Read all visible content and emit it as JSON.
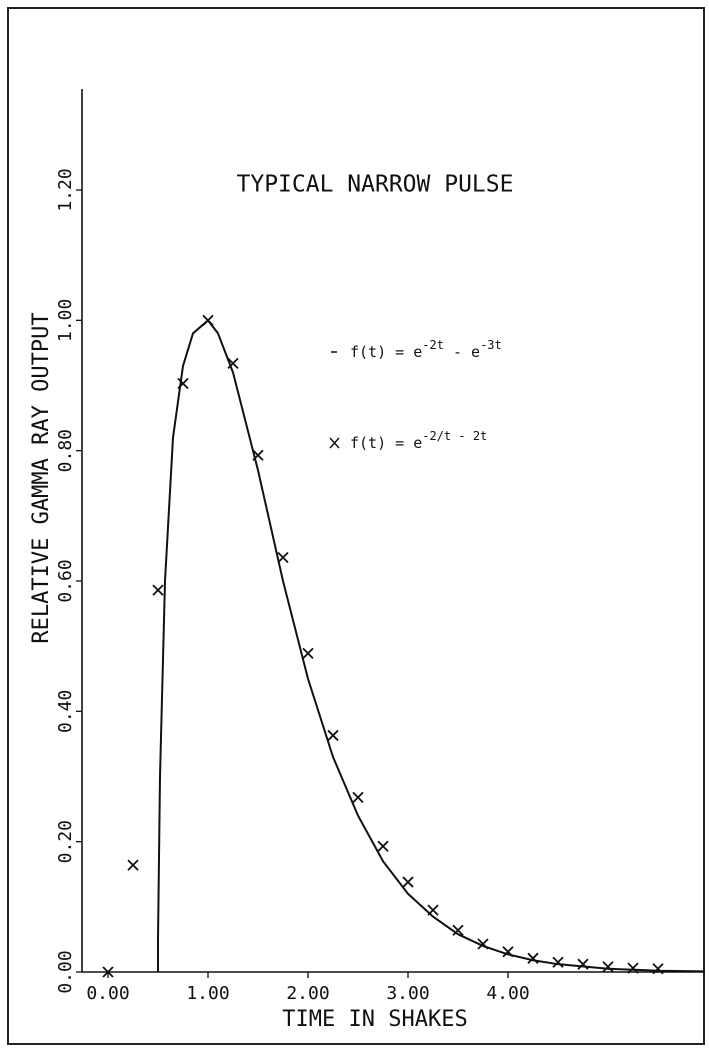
{
  "chart_data": {
    "type": "line",
    "title": "TYPICAL NARROW PULSE",
    "xlabel": "TIME IN SHAKES",
    "ylabel": "RELATIVE GAMMA RAY OUTPUT",
    "xlim": [
      -0.26,
      5.97
    ],
    "ylim": [
      0,
      1.355
    ],
    "xticks": [
      {
        "value": 0,
        "label": "0.00"
      },
      {
        "value": 1,
        "label": "1.00"
      },
      {
        "value": 2,
        "label": "2.00"
      },
      {
        "value": 3,
        "label": "3.00"
      },
      {
        "value": 4,
        "label": "4.00"
      }
    ],
    "yticks": [
      {
        "value": 0,
        "label": "0.00"
      },
      {
        "value": 0.2,
        "label": "0.20"
      },
      {
        "value": 0.4,
        "label": "0.40"
      },
      {
        "value": 0.6,
        "label": "0.60"
      },
      {
        "value": 0.8,
        "label": "0.80"
      },
      {
        "value": 1.0,
        "label": "1.00"
      },
      {
        "value": 1.2,
        "label": "1.20"
      }
    ],
    "series": [
      {
        "name": [
          "f(t) = e",
          "-2t",
          " - e",
          "-3t"
        ],
        "symbol": "line",
        "color": "#111111",
        "x": [
          0.5,
          0.5,
          0.52,
          0.57,
          0.65,
          0.75,
          0.85,
          1.0,
          1.1,
          1.25,
          1.5,
          1.75,
          2.0,
          2.25,
          2.5,
          2.75,
          3.0,
          3.25,
          3.5,
          3.75,
          4.0,
          4.25,
          4.5,
          5.0,
          5.5,
          5.97
        ],
        "values": [
          0,
          0.05,
          0.3,
          0.6,
          0.82,
          0.93,
          0.98,
          1.0,
          0.98,
          0.92,
          0.77,
          0.6,
          0.45,
          0.33,
          0.24,
          0.17,
          0.12,
          0.085,
          0.058,
          0.04,
          0.027,
          0.018,
          0.012,
          0.005,
          0.002,
          0.001
        ]
      },
      {
        "name": [
          "f(t) = e",
          "-2/t - 2t"
        ],
        "symbol": "x",
        "color": "#111111",
        "x": [
          0,
          0.25,
          0.5,
          0.75,
          1.0,
          1.25,
          1.5,
          1.75,
          2.0,
          2.25,
          2.5,
          2.75,
          3.0,
          3.25,
          3.5,
          3.75,
          4.0,
          4.25,
          4.5,
          4.75,
          5.0,
          5.25,
          5.5
        ],
        "values": [
          0,
          0.164,
          0.586,
          0.903,
          1.0,
          0.934,
          0.793,
          0.636,
          0.489,
          0.363,
          0.268,
          0.193,
          0.138,
          0.095,
          0.064,
          0.043,
          0.031,
          0.021,
          0.015,
          0.012,
          0.008,
          0.006,
          0.005
        ]
      }
    ]
  }
}
